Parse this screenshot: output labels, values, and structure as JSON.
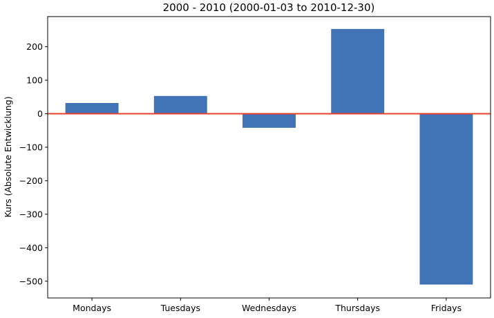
{
  "chart_data": {
    "type": "bar",
    "title": "2000 - 2010 (2000-01-03 to 2010-12-30)",
    "xlabel": "",
    "ylabel": "Kurs (Absolute Entwicklung)",
    "categories": [
      "Mondays",
      "Tuesdays",
      "Wednesdays",
      "Thursdays",
      "Fridays"
    ],
    "values": [
      32,
      53,
      -42,
      253,
      -510
    ],
    "ylim": [
      -550,
      290
    ],
    "yticks": [
      -500,
      -400,
      -300,
      -200,
      -100,
      0,
      100,
      200
    ],
    "ytick_labels": [
      "−500",
      "−400",
      "−300",
      "−200",
      "−100",
      "0",
      "100",
      "200"
    ],
    "grid": false,
    "legend": "none",
    "colors": {
      "bar": "#4174b7",
      "zero_line": "#e8402a",
      "axis": "#000000"
    }
  }
}
